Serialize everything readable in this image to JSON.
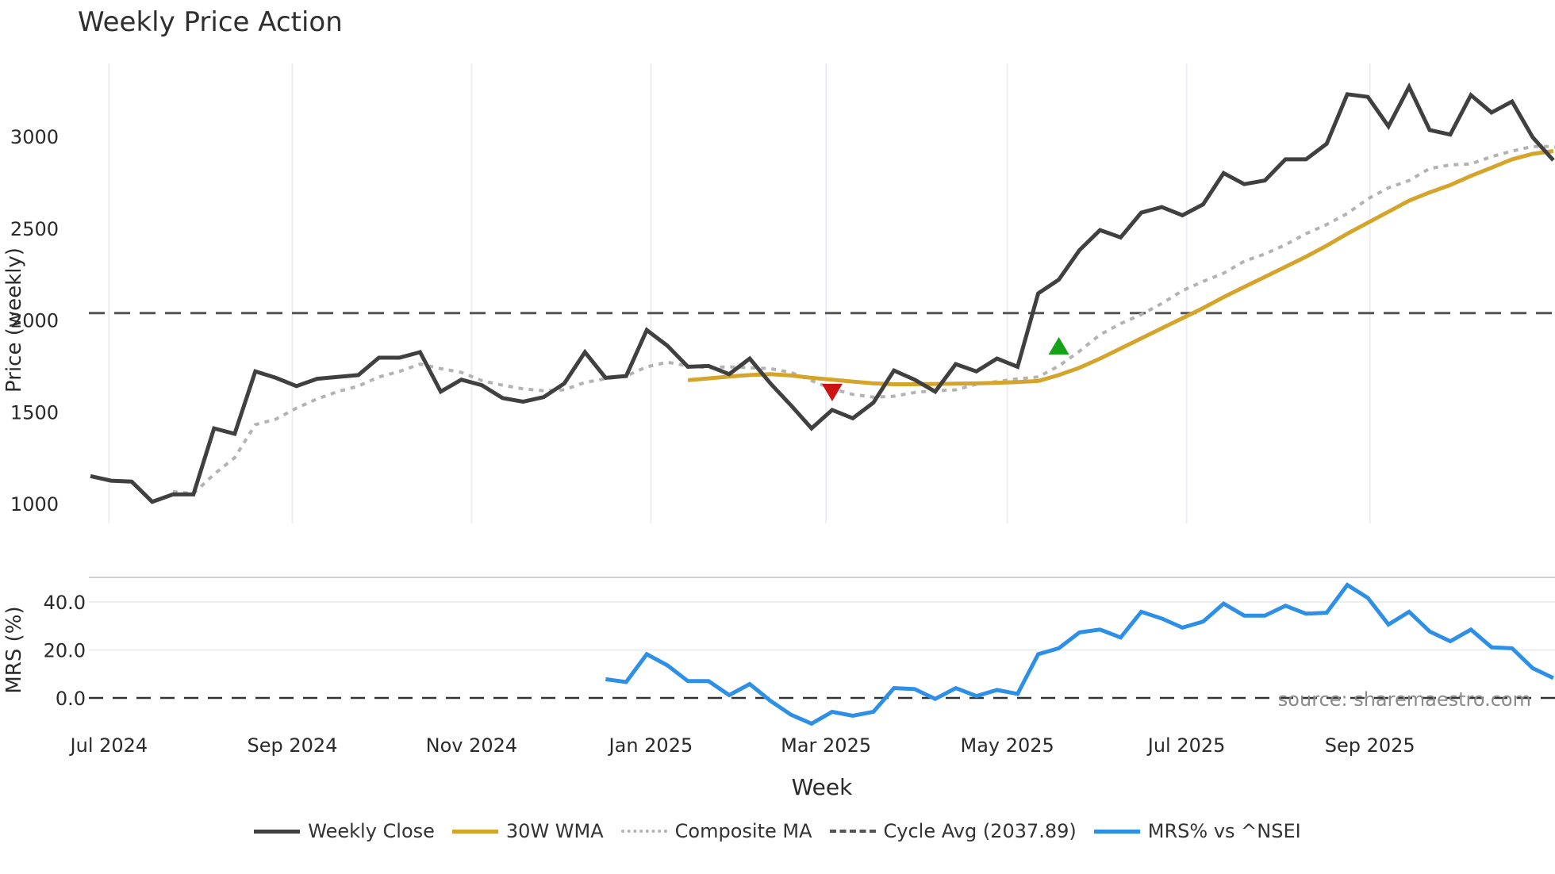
{
  "title": "Weekly Price Action",
  "source_note": "source: sharemaestro.com",
  "colors": {
    "weekly_close": "#404040",
    "wma": "#D4A52A",
    "composite": "#B3B3B3",
    "cycle_avg": "#555555",
    "mrs": "#2E8FE6",
    "sell_marker": "#CC1414",
    "buy_marker": "#17A317",
    "grid": "#ECEEF2"
  },
  "legend": [
    {
      "key": "weekly_close",
      "label": "Weekly Close",
      "style": "solid"
    },
    {
      "key": "wma",
      "label": "30W WMA",
      "style": "solid"
    },
    {
      "key": "composite",
      "label": "Composite MA",
      "style": "dotted"
    },
    {
      "key": "cycle_avg",
      "label": "Cycle Avg (2037.89)",
      "style": "dashed"
    },
    {
      "key": "mrs",
      "label": "MRS% vs ^NSEI",
      "style": "solid"
    }
  ],
  "chart_data": [
    {
      "type": "line",
      "title": "Weekly Price Action",
      "xlabel": "Week",
      "ylabel": "Price (weekly)",
      "ylim": [
        920,
        3330
      ],
      "yticks": [
        1000,
        1500,
        2000,
        2500,
        3000
      ],
      "xtick_labels": [
        "Jul 2024",
        "Sep 2024",
        "Nov 2024",
        "Jan 2025",
        "Mar 2025",
        "May 2025",
        "Jul 2025",
        "Sep 2025"
      ],
      "xtick_week_index": [
        0.9,
        9.8,
        18.5,
        27.2,
        35.7,
        44.5,
        53.2,
        62.1
      ],
      "grid": true,
      "series": [
        {
          "name": "Weekly Close",
          "start_index": 0,
          "values": [
            1150,
            1125,
            1120,
            1010,
            1050,
            1050,
            1410,
            1380,
            1720,
            1685,
            1640,
            1680,
            1690,
            1700,
            1795,
            1795,
            1825,
            1610,
            1675,
            1645,
            1575,
            1555,
            1580,
            1655,
            1825,
            1685,
            1695,
            1945,
            1860,
            1745,
            1750,
            1705,
            1790,
            1655,
            1535,
            1410,
            1510,
            1465,
            1550,
            1725,
            1675,
            1610,
            1760,
            1720,
            1790,
            1745,
            2145,
            2220,
            2380,
            2490,
            2450,
            2585,
            2615,
            2570,
            2630,
            2800,
            2740,
            2760,
            2875,
            2875,
            2960,
            3230,
            3215,
            3055,
            3270,
            3035,
            3010,
            3225,
            3130,
            3190,
            2995,
            2870
          ]
        },
        {
          "name": "30W WMA",
          "start_index": 29,
          "values": [
            1672,
            1682,
            1692,
            1700,
            1705,
            1698,
            1685,
            1675,
            1665,
            1655,
            1650,
            1650,
            1652,
            1653,
            1655,
            1658,
            1662,
            1668,
            1700,
            1740,
            1790,
            1845,
            1900,
            1955,
            2010,
            2065,
            2125,
            2180,
            2235,
            2290,
            2345,
            2405,
            2470,
            2530,
            2590,
            2650,
            2695,
            2735,
            2785,
            2830,
            2875,
            2905,
            2920
          ]
        },
        {
          "name": "Composite MA",
          "start_index": 4,
          "values": [
            1065,
            1055,
            1160,
            1250,
            1430,
            1460,
            1520,
            1570,
            1610,
            1640,
            1690,
            1720,
            1760,
            1735,
            1715,
            1670,
            1645,
            1625,
            1615,
            1620,
            1660,
            1680,
            1695,
            1745,
            1770,
            1750,
            1740,
            1745,
            1740,
            1735,
            1715,
            1670,
            1625,
            1595,
            1580,
            1585,
            1605,
            1615,
            1620,
            1650,
            1665,
            1680,
            1690,
            1750,
            1830,
            1920,
            1980,
            2030,
            2090,
            2160,
            2210,
            2255,
            2320,
            2360,
            2410,
            2470,
            2520,
            2580,
            2660,
            2720,
            2760,
            2825,
            2845,
            2850,
            2890,
            2920,
            2945,
            2945,
            2920
          ]
        },
        {
          "name": "Cycle Avg",
          "constant": 2037.89
        }
      ],
      "markers": [
        {
          "type": "sell",
          "shape": "triangle-down",
          "week_index": 36,
          "value": 1605
        },
        {
          "type": "buy",
          "shape": "triangle-up",
          "week_index": 47,
          "value": 1860
        }
      ]
    },
    {
      "type": "line",
      "ylabel": "MRS (%)",
      "ylim": [
        -14,
        52
      ],
      "yticks": [
        0.0,
        20.0,
        40.0
      ],
      "ytick_labels": [
        "0.0",
        "20.0",
        "40.0"
      ],
      "grid": true,
      "series": [
        {
          "name": "MRS% vs ^NSEI",
          "start_index": 25,
          "values": [
            7.8,
            6.6,
            18.2,
            13.6,
            7.0,
            7.0,
            1.2,
            5.8,
            -1.2,
            -7.0,
            -10.7,
            -5.8,
            -7.4,
            -5.8,
            4.1,
            3.7,
            -0.4,
            4.1,
            0.8,
            3.3,
            1.7,
            18.2,
            20.7,
            27.3,
            28.5,
            25.2,
            35.9,
            33.1,
            29.3,
            31.8,
            39.3,
            34.3,
            34.3,
            38.4,
            35.1,
            35.5,
            47.1,
            41.7,
            30.6,
            35.9,
            27.7,
            23.6,
            28.5,
            21.1,
            20.7,
            12.4,
            8.3
          ]
        },
        {
          "name": "Zero line",
          "constant": 0
        }
      ]
    }
  ]
}
